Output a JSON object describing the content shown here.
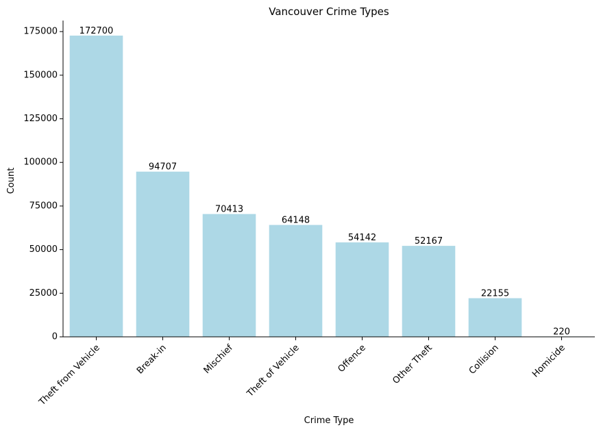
{
  "chart_data": {
    "type": "bar",
    "title": "Vancouver Crime Types",
    "xlabel": "Crime Type",
    "ylabel": "Count",
    "categories": [
      "Theft from Vehicle",
      "Break-in",
      "Mischief",
      "Theft of Vehicle",
      "Offence",
      "Other Theft",
      "Collision",
      "Homicide"
    ],
    "values": [
      172700,
      94707,
      70413,
      64148,
      54142,
      52167,
      22155,
      220
    ],
    "ylim": [
      0,
      181335
    ],
    "yticks": [
      0,
      25000,
      50000,
      75000,
      100000,
      125000,
      150000,
      175000
    ],
    "bar_color": "#add8e6",
    "data_labels": true,
    "grid": false
  }
}
